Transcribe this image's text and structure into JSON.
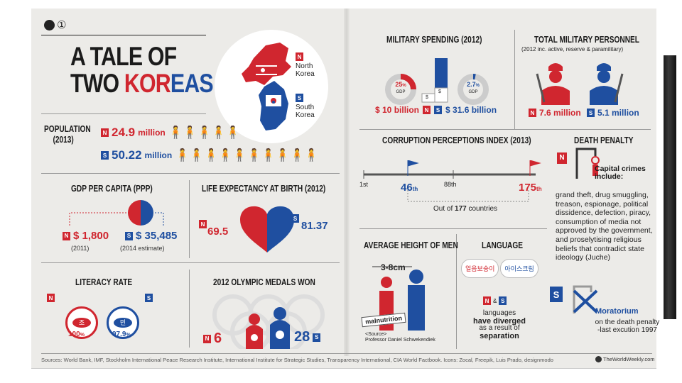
{
  "header": {
    "title_line1": "A TALE OF",
    "title_line2_dark": "TWO ",
    "title_line2_red": "KOR",
    "title_line2_blue": "EAS",
    "badge_text": "①"
  },
  "map": {
    "north_label_line1": "North",
    "north_label_line2": "Korea",
    "south_label_line1": "South",
    "south_label_line2": "Korea",
    "north_flag": "N",
    "south_flag": "S"
  },
  "population": {
    "label_line1": "POPULATION",
    "label_line2": "(2013)",
    "north_value": "24.9",
    "north_unit": "million",
    "south_value": "50.22",
    "south_unit": "million",
    "north_icons": "🧍🧍🧍🧍🧍",
    "south_icons": "🧍🧍🧍🧍🧍🧍🧍🧍🧍🧍"
  },
  "gdp": {
    "title": "GDP PER CAPITA (PPP)",
    "north_value": "$ 1,800",
    "north_note": "(2011)",
    "south_value": "$ 35,485",
    "south_note": "(2014 estimate)"
  },
  "life": {
    "title": "LIFE EXPECTANCY AT BIRTH (2012)",
    "north_value": "69.5",
    "south_value": "81.37"
  },
  "literacy": {
    "title": "LITERACY RATE",
    "north_value": "100",
    "north_unit": "%",
    "south_value": "97.9",
    "south_unit": "%",
    "north_badge": "조",
    "south_badge": "민"
  },
  "olympics": {
    "title": "2012 OLYMPIC MEDALS WON",
    "north_value": "6",
    "south_value": "28"
  },
  "military": {
    "title": "MILITARY SPENDING (2012)",
    "north_pct": "25",
    "north_pct_unit": "%",
    "north_pct_label": "GDP",
    "south_pct": "2.7",
    "south_pct_unit": "%",
    "south_pct_label": "GDP",
    "north_value": "$ 10 billion",
    "south_value": "$ 31.6 billion",
    "bill_n": "$",
    "bill_s": "$"
  },
  "personnel": {
    "title": "TOTAL MILITARY PERSONNEL",
    "subtitle": "(2012 inc. active, reserve & paramilitary)",
    "north_value": "7.6 million",
    "south_value": "5.1 million"
  },
  "cpi": {
    "title": "CORRUPTION PERCEPTIONS INDEX (2013)",
    "tick_start": "1st",
    "tick_mid": "88th",
    "south_rank": "46",
    "south_suffix": "th",
    "north_rank": "175",
    "north_suffix": "th",
    "note_prefix": "Out of ",
    "note_value": "177",
    "note_suffix": " countries"
  },
  "death": {
    "title": "DEATH PENALTY",
    "north_heading_line1": "Capital crimes",
    "north_heading_line2": "include:",
    "north_text": "grand theft, drug smuggling, treason, espionage, political dissidence, defection, piracy, consumption of media not approved by the government, and proselytising religious beliefs that contradict state ideology (Juche)",
    "south_heading": "Moratorium",
    "south_text_line1": "on the death penalty",
    "south_text_line2": "-last excution 1997"
  },
  "height": {
    "title": "AVERAGE HEIGHT OF MEN",
    "diff": "3-8cm",
    "tag": "malnutrition",
    "source_line1": "<Source>",
    "source_line2": "Professor Daniel Schwekendiek"
  },
  "language": {
    "title": "LANGUAGE",
    "north_word": "얼음보숭이",
    "south_word": "아이스크림",
    "amp": "&",
    "text_line1": "languages",
    "text_line2": "have diverged",
    "text_line3": "as a result of",
    "text_line4": "separation"
  },
  "footer": {
    "sources": "Sources: World Bank, IMF, Stockholm International Peace Research Institute, International Institute for Strategic Studies, Transparency International, CIA World Factbook. Icons: Zocal, Freepik, Luis Prado, designmodo",
    "brand": "TheWorldWeekly.com"
  },
  "colors": {
    "north": "#d0262f",
    "south": "#1f4fa0",
    "paper": "#ecebe8"
  }
}
